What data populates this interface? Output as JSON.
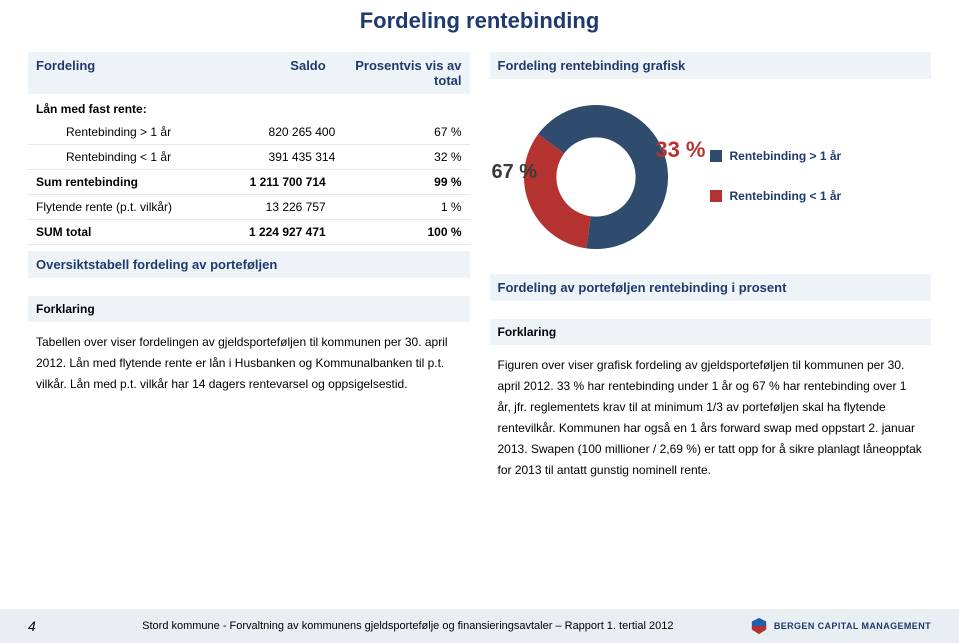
{
  "title": "Fordeling rentebinding",
  "table": {
    "headers": {
      "col1": "Fordeling",
      "col2": "Saldo",
      "col3": "Prosentvis vis av total"
    },
    "group_label": "Lån med fast rente:",
    "rows": [
      {
        "label": "Rentebinding > 1 år",
        "saldo": "820 265 400",
        "pct": "67 %",
        "indent": true,
        "bold": false
      },
      {
        "label": "Rentebinding < 1 år",
        "saldo": "391 435 314",
        "pct": "32 %",
        "indent": true,
        "bold": false
      },
      {
        "label": "Sum rentebinding",
        "saldo": "1 211 700 714",
        "pct": "99 %",
        "indent": false,
        "bold": true
      },
      {
        "label": "Flytende rente (p.t. vilkår)",
        "saldo": "13 226 757",
        "pct": "1 %",
        "indent": false,
        "bold": false
      },
      {
        "label": "SUM total",
        "saldo": "1 224 927 471",
        "pct": "100 %",
        "indent": false,
        "bold": true
      }
    ],
    "caption": "Oversiktstabell fordeling av porteføljen"
  },
  "chart": {
    "title": "Fordeling rentebinding grafisk",
    "type": "donut",
    "inner_radius": 0.55,
    "background_color": "#ffffff",
    "slices": [
      {
        "label": "Rentebinding > 1 år",
        "value": 67,
        "pct_text": "67 %",
        "color": "#2f4b6e",
        "label_color": "#3a3a3a"
      },
      {
        "label": "Rentebinding < 1 år",
        "value": 33,
        "pct_text": "33 %",
        "color": "#b43331",
        "label_color": "#b43331"
      }
    ],
    "caption": "Fordeling av porteføljen rentebinding i prosent",
    "pct_fontsize": 20,
    "legend_fontsize": 12,
    "legend_position": "right"
  },
  "explain_left": {
    "heading": "Forklaring",
    "text": "Tabellen over viser fordelingen av gjeldsporteføljen til kommunen per 30. april 2012. Lån med flytende rente er lån i Husbanken og Kommunalbanken til p.t. vilkår. Lån med p.t. vilkår har 14 dagers rentevarsel og oppsigelsestid."
  },
  "explain_right": {
    "heading": "Forklaring",
    "text": "Figuren over viser grafisk fordeling av gjeldsporteføljen til kommunen per 30. april 2012.  33 % har rentebinding under 1 år og 67 % har rentebinding over 1 år, jfr. reglementets krav til at minimum 1/3 av porteføljen skal ha flytende rentevilkår. Kommunen har også en 1 års forward swap med oppstart 2. januar 2013. Swapen (100 millioner / 2,69 %) er tatt opp for å sikre planlagt låneopptak for 2013 til antatt gunstig nominell rente."
  },
  "footer": {
    "page": "4",
    "text": "Stord kommune - Forvaltning av kommunens gjeldsportefølje og finansieringsavtaler – Rapport 1. tertial 2012",
    "logo_text": "BERGEN CAPITAL MANAGEMENT",
    "logo_colors": {
      "top": "#1f5fa8",
      "bottom": "#b43331"
    }
  },
  "colors": {
    "heading": "#1f3a6e",
    "panel_bg": "#eef3f7",
    "border": "#e6e6e6"
  }
}
